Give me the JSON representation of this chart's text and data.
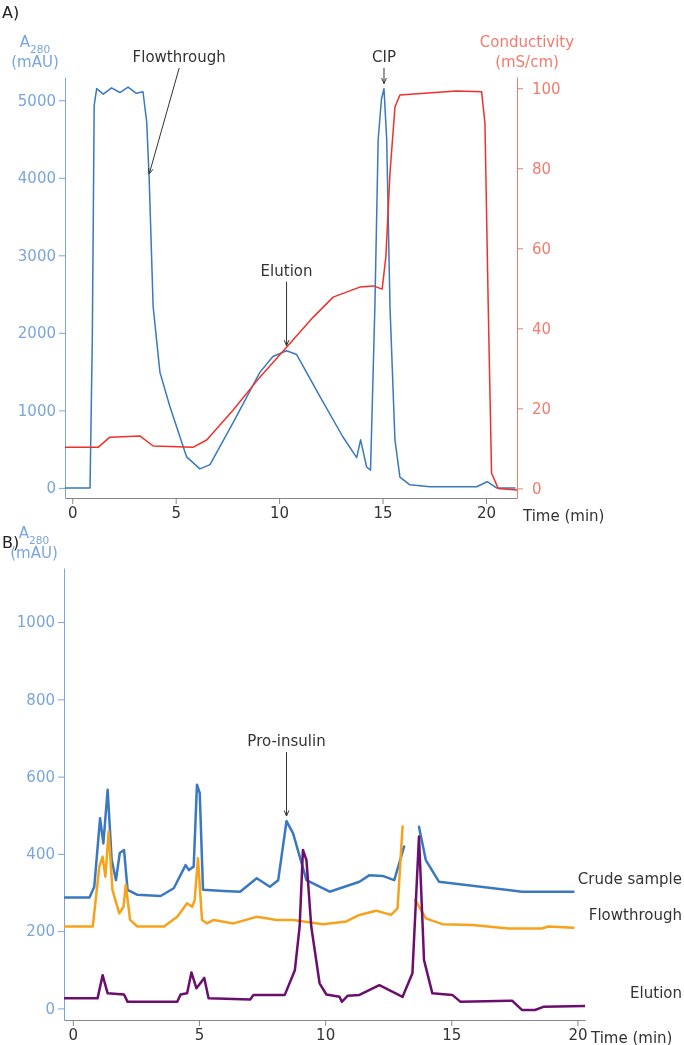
{
  "chart_data": [
    {
      "type": "line",
      "title": "A)",
      "xlabel": "Time (min)",
      "ylabel": "A$_{280}$ (mAU)",
      "y2label": "Conductivity (mS/cm)",
      "xlim": [
        -0.35,
        21.5
      ],
      "xticks": [
        0,
        5,
        10,
        15,
        20
      ],
      "ylim": [
        -130,
        5300
      ],
      "yticks": [
        0,
        1000,
        2000,
        3000,
        4000,
        5000
      ],
      "y2lim": [
        -2.4,
        102.8
      ],
      "y2ticks": [
        0,
        20,
        40,
        60,
        80,
        100
      ],
      "grid": false,
      "series": [
        {
          "color": "#3a78c0",
          "x": [
            -0.35,
            0.86,
            0.97,
            1.06,
            1.18,
            1.5,
            1.9,
            2.3,
            2.7,
            3.1,
            3.42,
            3.6,
            3.72,
            3.91,
            4.24,
            4.72,
            5.53,
            6.17,
            6.66,
            7.77,
            9.07,
            9.7,
            10.36,
            10.85,
            11.97,
            13.08,
            13.75,
            13.94,
            14.23,
            14.42,
            14.63,
            14.79,
            14.95,
            15.07,
            15.2,
            15.36,
            15.6,
            15.84,
            16.32,
            17.29,
            19.55,
            20.06,
            20.51,
            21.4
          ],
          "values": [
            0,
            0,
            1915,
            4930,
            5150,
            5080,
            5160,
            5100,
            5170,
            5090,
            5110,
            4720,
            3985,
            2340,
            1490,
            1050,
            400,
            245,
            300,
            840,
            1490,
            1695,
            1770,
            1720,
            1180,
            660,
            390,
            620,
            270,
            230,
            2340,
            4500,
            5020,
            5150,
            4500,
            2340,
            620,
            140,
            40,
            15,
            15,
            80,
            0,
            0
          ]
        },
        {
          "color": "#f0302a",
          "axis": "y2",
          "x": [
            -0.35,
            1.26,
            1.82,
            3.27,
            3.91,
            5.85,
            6.5,
            7.78,
            9.07,
            10.36,
            11.65,
            12.61,
            13.9,
            14.55,
            14.98,
            15.16,
            15.36,
            15.6,
            15.84,
            18.58,
            19.79,
            19.95,
            20.11,
            20.27,
            20.59,
            21.48
          ],
          "values": [
            10.3,
            10.3,
            12.8,
            13.1,
            10.6,
            10.3,
            12.1,
            19.6,
            27.8,
            35.3,
            42.8,
            47.8,
            50.3,
            50.6,
            49.8,
            57.8,
            78.8,
            95.3,
            98.3,
            99.3,
            99.1,
            91.3,
            45.3,
            3.8,
            0,
            -0.4
          ]
        }
      ],
      "annotations": [
        {
          "text": "Flowthrough",
          "x": 3.72,
          "y": 3985
        },
        {
          "text": "Elution",
          "x": 10.36,
          "y": 1770
        },
        {
          "text": "CIP",
          "x": 15.07,
          "y": 5150
        }
      ]
    },
    {
      "type": "line",
      "title": "B)",
      "xlabel": "Time (min)",
      "ylabel": "A$_{280}$ (mAU)",
      "xlim": [
        -0.35,
        20.3
      ],
      "xticks": [
        0,
        5,
        10,
        15,
        20
      ],
      "ylim": [
        -30,
        1140
      ],
      "yticks": [
        0,
        200,
        400,
        600,
        800,
        1000
      ],
      "grid": false,
      "series": [
        {
          "name": "Crude sample",
          "color": "#3a78c0",
          "x": [
            -0.33,
            0.66,
            0.85,
            1.08,
            1.21,
            1.38,
            1.54,
            1.71,
            1.86,
            2.03,
            2.17,
            2.56,
            3.48,
            4.0,
            4.47,
            4.6,
            4.79,
            4.92,
            5.03,
            5.16,
            5.98,
            6.63,
            7.29,
            7.81,
            8.14,
            8.47,
            8.73,
            9.26,
            10.18,
            11.36,
            11.76,
            12.28,
            12.74,
            13.13,
            13.27,
            13.45,
            13.62,
            13.72,
            13.99,
            14.51,
            17.8,
            19.84
          ],
          "values": [
            287,
            287,
            315,
            492,
            427,
            566,
            384,
            332,
            402,
            410,
            307,
            294,
            291,
            311,
            371,
            358,
            367,
            579,
            557,
            307,
            304,
            302,
            337,
            315,
            332,
            485,
            453,
            332,
            302,
            328,
            345,
            343,
            332,
            419,
            null,
            null,
            null,
            470,
            384,
            328,
            302,
            302
          ]
        },
        {
          "name": "Flowthrough",
          "color": "#f7a21b",
          "x": [
            -0.33,
            0.79,
            1.05,
            1.18,
            1.29,
            1.42,
            1.57,
            1.84,
            2.01,
            2.1,
            2.27,
            2.56,
            3.61,
            4.14,
            4.53,
            4.73,
            4.83,
            4.96,
            5.12,
            5.32,
            5.58,
            6.37,
            7.29,
            8.08,
            8.73,
            9.92,
            10.84,
            11.36,
            12.02,
            12.61,
            12.87,
            13.07,
            13.2,
            13.44,
            13.57,
            13.99,
            14.65,
            15.83,
            17.27,
            18.58,
            18.85,
            19.84
          ],
          "values": [
            212,
            212,
            367,
            393,
            341,
            458,
            307,
            246,
            263,
            320,
            229,
            212,
            212,
            237,
            272,
            263,
            281,
            389,
            229,
            220,
            229,
            220,
            237,
            229,
            229,
            218,
            225,
            242,
            253,
            242,
            259,
            471,
            null,
            null,
            281,
            233,
            218,
            216,
            207,
            207,
            212,
            209
          ]
        },
        {
          "name": "Elution",
          "color": "#6b0f6e",
          "x": [
            -0.33,
            0.98,
            1.18,
            1.38,
            2.03,
            2.17,
            4.14,
            4.27,
            4.53,
            4.7,
            4.9,
            5.21,
            5.38,
            7.03,
            7.16,
            8.4,
            8.8,
            8.99,
            9.12,
            9.26,
            9.45,
            9.78,
            10.05,
            10.57,
            10.66,
            10.9,
            11.36,
            12.15,
            13.07,
            13.46,
            13.72,
            13.92,
            14.25,
            15.04,
            15.37,
            17.41,
            17.8,
            18.32,
            18.65,
            20.29
          ],
          "values": [
            26,
            26,
            86,
            39,
            36,
            17,
            17,
            36,
            39,
            93,
            52,
            79,
            26,
            23,
            35,
            35,
            99,
            212,
            410,
            384,
            212,
            65,
            36,
            30,
            17,
            33,
            35,
            60,
            30,
            91,
            445,
            125,
            39,
            35,
            17,
            20,
            -4,
            -4,
            4,
            6
          ]
        }
      ],
      "annotations": [
        {
          "text": "Pro-insulin",
          "x": 8.47,
          "y": 485
        }
      ]
    }
  ]
}
